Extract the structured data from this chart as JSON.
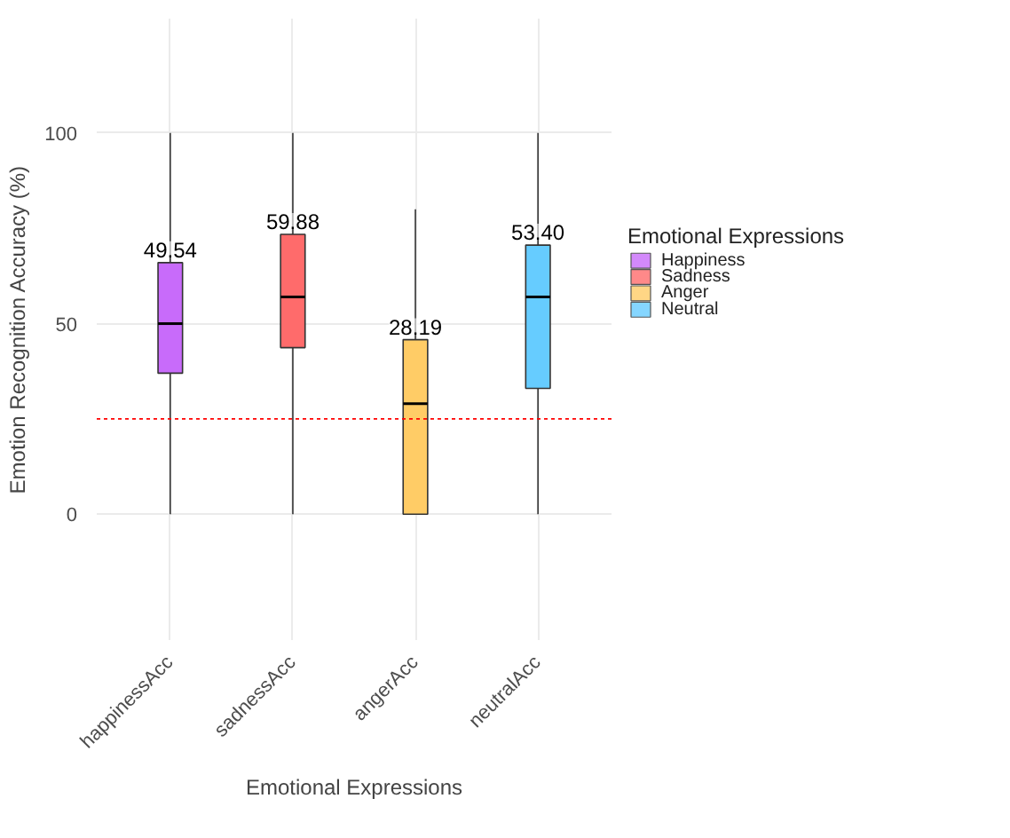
{
  "chart_data": {
    "type": "box",
    "xlabel": "Emotional Expressions",
    "ylabel": "Emotion Recognition Accuracy (%)",
    "legend_title": "Emotional Expressions",
    "categories": [
      "happinessAcc",
      "sadnessAcc",
      "angerAcc",
      "neutralAcc"
    ],
    "ylim": [
      -33,
      130
    ],
    "yticks": [
      0,
      50,
      100
    ],
    "grid": true,
    "legend": "right",
    "series": [
      {
        "name": "Happiness",
        "color": "#c86bfa",
        "boxes": [
          {
            "low": 0,
            "q1": 37,
            "median": 50,
            "q3": 66,
            "high": 100
          },
          null,
          null,
          null
        ]
      },
      {
        "name": "Sadness",
        "color": "#ff6b6b",
        "boxes": [
          null,
          {
            "low": 0,
            "q1": 43.7,
            "median": 57,
            "q3": 73.4,
            "high": 100
          },
          null,
          null
        ]
      },
      {
        "name": "Anger",
        "color": "#ffcc66",
        "boxes": [
          null,
          null,
          {
            "low": 0,
            "q1": 0,
            "median": 29,
            "q3": 45.8,
            "high": 80
          },
          null
        ]
      },
      {
        "name": "Neutral",
        "color": "#66ccff",
        "boxes": [
          null,
          null,
          null,
          {
            "low": 0,
            "q1": 33,
            "median": 57,
            "q3": 70.6,
            "high": 100
          }
        ]
      }
    ],
    "ref_lines": [
      {
        "axis": "y",
        "value": 25,
        "color": "#ff0000",
        "line_style": "dotted"
      }
    ],
    "annotations": [
      "49.54",
      "59.88",
      "28.19",
      "53.40"
    ]
  }
}
